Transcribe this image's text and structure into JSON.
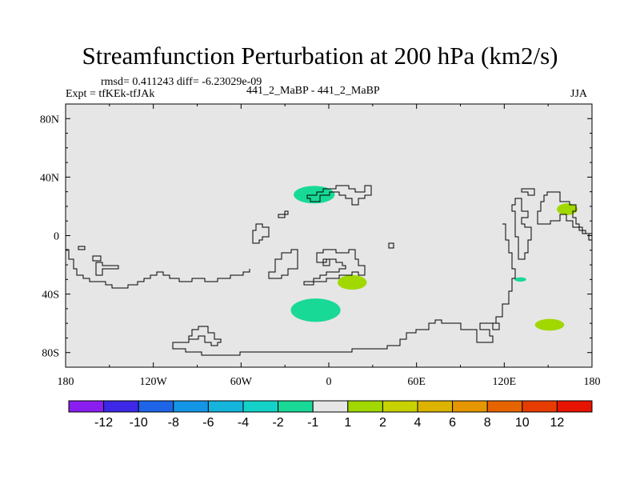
{
  "title": "Streamfunction Perturbation at 200 hPa (km2/s)",
  "stats_line": "rmsd= 0.411243 diff= -6.23029e-09",
  "expt_label": "Expt = tfKEk-tfJAk",
  "case_label": "441_2_MaBP - 441_2_MaBP",
  "season": "JJA",
  "map": {
    "projection": "cylindrical-equidistant",
    "lon_range": [
      -180,
      180
    ],
    "lat_range": [
      -90,
      90
    ],
    "background_color": "#e6e6e6",
    "lat_ticks": [
      80,
      40,
      0,
      -40,
      -80
    ],
    "lat_tick_labels": [
      "80N",
      "40N",
      "0",
      "40S",
      "80S"
    ],
    "lon_ticks": [
      -180,
      -120,
      -60,
      0,
      60,
      120,
      180
    ],
    "lon_tick_labels": [
      "180",
      "120W",
      "60W",
      "0",
      "60E",
      "120E",
      "180"
    ]
  },
  "chart_data": {
    "type": "heatmap",
    "field": "streamfunction perturbation",
    "level_hPa": 200,
    "units": "km2/s",
    "anomalies": [
      {
        "lon": -10,
        "lat": 28,
        "dlon": 14,
        "dlat": 6,
        "bin": "-2 to -1",
        "color": "#19d996"
      },
      {
        "lon": 16,
        "lat": -32,
        "dlon": 10,
        "dlat": 5,
        "bin": "1 to 2",
        "color": "#a0d800"
      },
      {
        "lon": -9,
        "lat": -51,
        "dlon": 17,
        "dlat": 8,
        "bin": "-2 to -1",
        "color": "#19d996"
      },
      {
        "lon": 163,
        "lat": 18,
        "dlon": 7,
        "dlat": 4,
        "bin": "1 to 2",
        "color": "#a0d800"
      },
      {
        "lon": 131,
        "lat": -30,
        "dlon": 4,
        "dlat": 1.5,
        "bin": "-2 to -1",
        "color": "#19d996"
      },
      {
        "lon": 151,
        "lat": -61,
        "dlon": 10,
        "dlat": 4,
        "bin": "1 to 2",
        "color": "#a0d800"
      }
    ]
  },
  "colorbar": {
    "colors": [
      "#8a1ef0",
      "#3c28e6",
      "#1e64e6",
      "#1496e6",
      "#14b4dc",
      "#14d2c8",
      "#19d996",
      "#e6e6e6",
      "#a0d800",
      "#c8d200",
      "#dcb400",
      "#e69600",
      "#e66400",
      "#e63c00",
      "#e61400"
    ],
    "labels": [
      "-12",
      "-10",
      "-8",
      "-6",
      "-4",
      "-2",
      "-1",
      "1",
      "2",
      "4",
      "6",
      "8",
      "10",
      "12"
    ]
  }
}
